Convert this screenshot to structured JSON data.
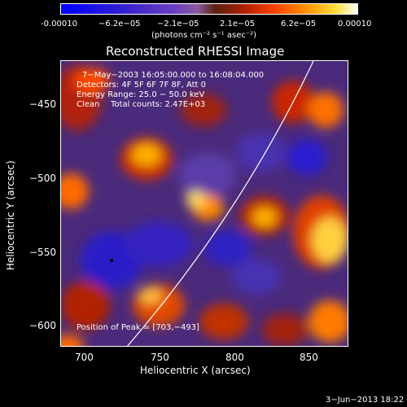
{
  "colorbar": {
    "ticks": [
      "-0.00010",
      "−6.2e−05",
      "−2.1e−05",
      "2.1e−05",
      "6.2e−05",
      "0.00010"
    ],
    "unit": "(photons cm⁻² s⁻¹ asec⁻²)"
  },
  "plot": {
    "title": "Reconstructed RHESSI Image",
    "time_range": "7−May−2003 16:05:00.000 to 16:08:04.000",
    "detectors": "Detectors: 4F 5F 6F 7F 8F, Att 0",
    "energy": "Energy Range: 25.0 − 50.0 keV",
    "algorithm": "Clean",
    "total_counts": "Total counts: 2.47E+03",
    "peak": "Position of Peak = [703,−493]"
  },
  "axes": {
    "xlabel": "Heliocentric X (arcsec)",
    "ylabel": "Heliocentric Y (arcsec)",
    "xticks": [
      "700",
      "750",
      "800",
      "850"
    ],
    "yticks": [
      "−450",
      "−500",
      "−550",
      "−600"
    ]
  },
  "footer": {
    "date": "3−Jun−2013 18:22"
  }
}
